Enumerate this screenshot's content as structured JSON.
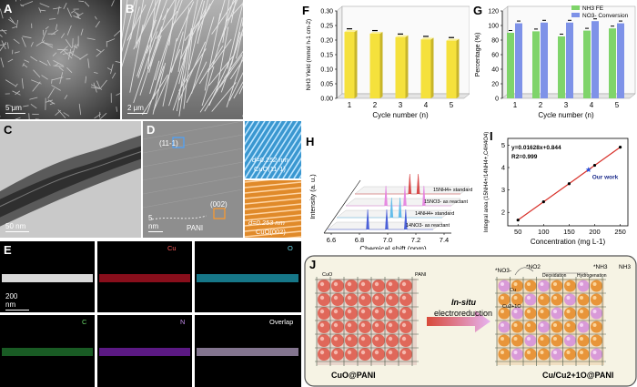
{
  "labels": {
    "A": "A",
    "B": "B",
    "C": "C",
    "D": "D",
    "E": "E",
    "F": "F",
    "G": "G",
    "H": "H",
    "I": "I",
    "J": "J"
  },
  "scalebars": {
    "A": "5 μm",
    "B": "2 μm",
    "C": "50 nm",
    "D": "5 nm",
    "E": "200 nm"
  },
  "hrtem": {
    "plane1": "(11-1)",
    "plane2": "(002)",
    "pani": "PANI",
    "d1": "d=0.252 nm",
    "phase1": "CuO(11-1)",
    "d2": "d=0.253 nm",
    "phase2": "CuO(002)"
  },
  "eds": {
    "cu": "Cu",
    "o": "O",
    "c": "C",
    "n": "N",
    "overlap": "Overlap"
  },
  "chart_F": {
    "type": "bar",
    "categories": [
      "1",
      "2",
      "3",
      "4",
      "5"
    ],
    "values": [
      0.228,
      0.222,
      0.21,
      0.202,
      0.198
    ],
    "xlabel": "Cycle number (n)",
    "ylabel": "NH3 Yield (mmol h-1 cm-2)",
    "ylim": [
      0,
      0.3
    ],
    "yticks": [
      "0.00",
      "0.05",
      "0.10",
      "0.15",
      "0.20",
      "0.25",
      "0.30"
    ],
    "color": "#f5e13c"
  },
  "chart_G": {
    "type": "bar",
    "categories": [
      "1",
      "2",
      "3",
      "4",
      "5"
    ],
    "series": [
      {
        "name": "NH3 FE",
        "values": [
          90,
          92,
          85,
          93,
          96
        ],
        "color": "#7fd46a"
      },
      {
        "name": "NO3- Conversion",
        "values": [
          103,
          104,
          104,
          106,
          103
        ],
        "color": "#7e92e8"
      }
    ],
    "xlabel": "Cycle number (n)",
    "ylabel": "Percentage (%)",
    "ylim": [
      0,
      120
    ],
    "yticks": [
      "0",
      "20",
      "40",
      "60",
      "80",
      "100",
      "120"
    ]
  },
  "chart_H": {
    "type": "line",
    "xlabel": "Chemical shift (ppm)",
    "ylabel": "Intensity (a. u.)",
    "xticks": [
      "6.6",
      "6.8",
      "7.0",
      "7.2",
      "7.4"
    ],
    "traces": [
      {
        "name": "15NH4+ standard",
        "color": "#d63a3a"
      },
      {
        "name": "15NO3- as reactant",
        "color": "#e57fe0"
      },
      {
        "name": "14NH4+ standard",
        "color": "#56b8ea"
      },
      {
        "name": "14NO3- as reactant",
        "color": "#3b52d6"
      }
    ]
  },
  "chart_I": {
    "type": "scatter",
    "x": [
      50,
      100,
      150,
      200,
      250
    ],
    "y": [
      1.657,
      2.47,
      3.28,
      4.1,
      4.91
    ],
    "highlight": {
      "x": 188,
      "y": 3.9,
      "label": "Our work"
    },
    "equation": "y=0.01628x+0.844",
    "r2": "R2=0.999",
    "xlabel": "Concentration (mg L-1)",
    "ylabel": "Integral area (15NH4+/14NH4+,C4H4O4)",
    "xticks": [
      "50",
      "100",
      "150",
      "200",
      "250"
    ],
    "yticks": [
      "2",
      "3",
      "4",
      "5"
    ]
  },
  "scheme": {
    "left_title": "CuO@PANI",
    "right_title": "Cu/Cu2+1O@PANI",
    "arrow_top": "In-situ",
    "arrow_bottom": "electroreduction",
    "cuo": "CuO",
    "pani": "PANI",
    "no3": "*NO3-",
    "no2": "*NO2",
    "deox": "Deoxidation",
    "hydro": "Hydrogenation",
    "nh3_star": "*NH3",
    "nh3": "NH3",
    "cu": "Cu",
    "cu2o": "Cu2+1O"
  }
}
